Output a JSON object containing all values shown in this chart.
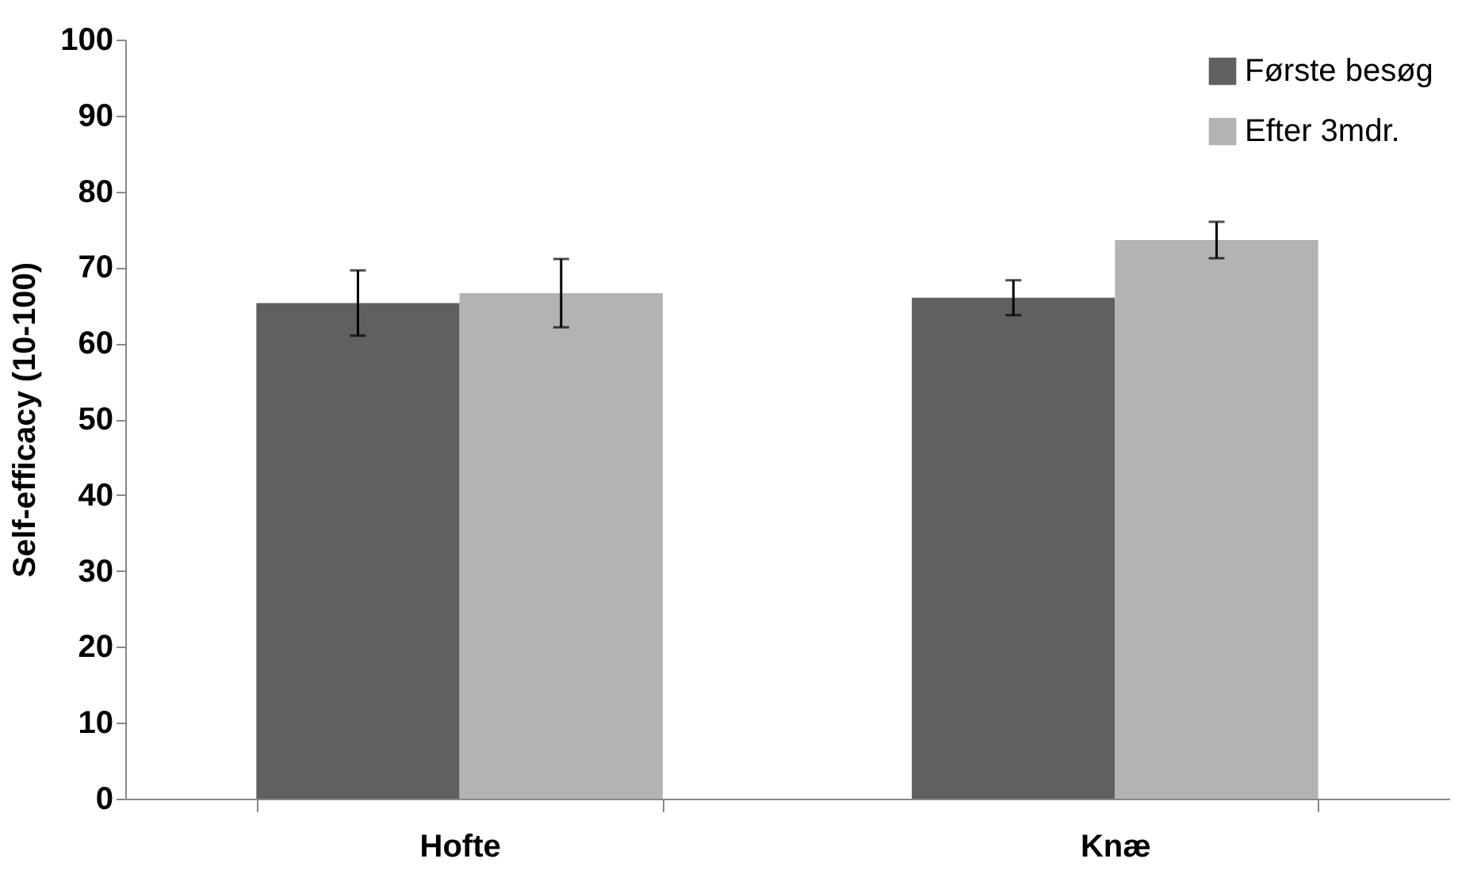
{
  "chart_data": {
    "type": "bar",
    "ylabel": "Self-efficacy (10-100)",
    "categories": [
      "Hofte",
      "Knæ"
    ],
    "series": [
      {
        "name": "Første besøg",
        "color": "#606060",
        "values": [
          65.3,
          66.0
        ],
        "errors": [
          4.3,
          2.3
        ]
      },
      {
        "name": "Efter 3mdr.",
        "color": "#b3b3b3",
        "values": [
          66.6,
          73.6
        ],
        "errors": [
          4.5,
          2.4
        ]
      }
    ],
    "ylim": [
      0,
      100
    ],
    "yticks": [
      0,
      10,
      20,
      30,
      40,
      50,
      60,
      70,
      80,
      90,
      100
    ],
    "grid": false,
    "legend": "top right"
  }
}
